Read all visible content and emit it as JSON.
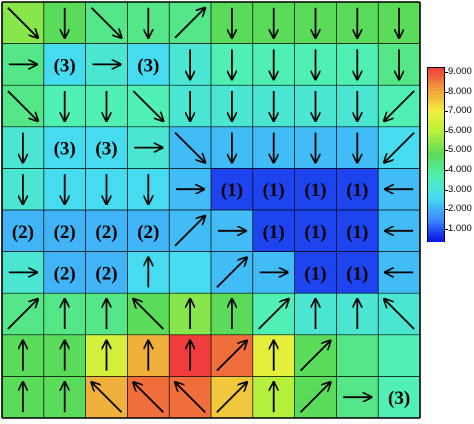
{
  "rows": 10,
  "cols": 10,
  "colormap": [
    {
      "value": 1.0,
      "color": "#0a14e6"
    },
    {
      "value": 2.0,
      "color": "#3c8cff"
    },
    {
      "value": 3.0,
      "color": "#46dcf0"
    },
    {
      "value": 4.0,
      "color": "#50f0b4"
    },
    {
      "value": 5.0,
      "color": "#5adc5a"
    },
    {
      "value": 6.0,
      "color": "#b4f03c"
    },
    {
      "value": 7.0,
      "color": "#f0f03c"
    },
    {
      "value": 8.0,
      "color": "#f0a03c"
    },
    {
      "value": 9.0,
      "color": "#f03c3c"
    }
  ],
  "legend": {
    "labels": [
      "9.000",
      "8.000",
      "7.000",
      "6.000",
      "5.000",
      "4.000",
      "3.000",
      "2.000",
      "1.000"
    ]
  },
  "cells": [
    [
      {
        "v": 5.5,
        "d": "se"
      },
      {
        "v": 5,
        "d": "s"
      },
      {
        "v": 4.5,
        "d": "se"
      },
      {
        "v": 4.5,
        "d": "s"
      },
      {
        "v": 4.5,
        "d": "ne"
      },
      {
        "v": 5,
        "d": "s"
      },
      {
        "v": 5,
        "d": "s"
      },
      {
        "v": 5,
        "d": "s"
      },
      {
        "v": 5,
        "d": "s"
      },
      {
        "v": 5,
        "d": "s"
      }
    ],
    [
      {
        "v": 4.5,
        "d": "e"
      },
      {
        "v": 3,
        "t": "(3)"
      },
      {
        "v": 3.5,
        "d": "e"
      },
      {
        "v": 3,
        "t": "(3)"
      },
      {
        "v": 3.5,
        "d": "s"
      },
      {
        "v": 4,
        "d": "s"
      },
      {
        "v": 4,
        "d": "s"
      },
      {
        "v": 4,
        "d": "s"
      },
      {
        "v": 4,
        "d": "s"
      },
      {
        "v": 4.5,
        "d": "s"
      }
    ],
    [
      {
        "v": 4.5,
        "d": "se"
      },
      {
        "v": 4,
        "d": "s"
      },
      {
        "v": 4,
        "d": "s"
      },
      {
        "v": 4,
        "d": "se"
      },
      {
        "v": 3.5,
        "d": "s"
      },
      {
        "v": 3.5,
        "d": "s"
      },
      {
        "v": 3.5,
        "d": "s"
      },
      {
        "v": 3.5,
        "d": "s"
      },
      {
        "v": 3.5,
        "d": "s"
      },
      {
        "v": 4,
        "d": "sw"
      }
    ],
    [
      {
        "v": 3.5,
        "d": "s"
      },
      {
        "v": 3,
        "t": "(3)"
      },
      {
        "v": 3,
        "t": "(3)"
      },
      {
        "v": 3.5,
        "d": "e"
      },
      {
        "v": 2.6,
        "d": "se"
      },
      {
        "v": 2.6,
        "d": "s"
      },
      {
        "v": 2.6,
        "d": "s"
      },
      {
        "v": 2.6,
        "d": "s"
      },
      {
        "v": 2.6,
        "d": "s"
      },
      {
        "v": 3,
        "d": "sw"
      }
    ],
    [
      {
        "v": 3.5,
        "d": "s"
      },
      {
        "v": 3,
        "d": "s"
      },
      {
        "v": 3,
        "d": "s"
      },
      {
        "v": 3,
        "d": "s"
      },
      {
        "v": 2.6,
        "d": "e"
      },
      {
        "v": 1.4,
        "t": "(1)"
      },
      {
        "v": 1.4,
        "t": "(1)"
      },
      {
        "v": 1.4,
        "t": "(1)"
      },
      {
        "v": 1.4,
        "t": "(1)"
      },
      {
        "v": 2.6,
        "d": "w"
      }
    ],
    [
      {
        "v": 2.5,
        "t": "(2)"
      },
      {
        "v": 2.5,
        "t": "(2)"
      },
      {
        "v": 2.5,
        "t": "(2)"
      },
      {
        "v": 2.5,
        "t": "(2)"
      },
      {
        "v": 2.6,
        "d": "ne"
      },
      {
        "v": 2.6,
        "d": "e"
      },
      {
        "v": 1.4,
        "t": "(1)"
      },
      {
        "v": 1.4,
        "t": "(1)"
      },
      {
        "v": 1.4,
        "t": "(1)"
      },
      {
        "v": 2.6,
        "d": "w"
      }
    ],
    [
      {
        "v": 3.5,
        "d": "e"
      },
      {
        "v": 2.5,
        "t": "(2)"
      },
      {
        "v": 2.5,
        "t": "(2)"
      },
      {
        "v": 3,
        "d": "n"
      },
      {
        "v": 3,
        "d": ""
      },
      {
        "v": 2.6,
        "d": "ne"
      },
      {
        "v": 2.6,
        "d": "e"
      },
      {
        "v": 1.4,
        "t": "(1)"
      },
      {
        "v": 1.4,
        "t": "(1)"
      },
      {
        "v": 2.6,
        "d": "w"
      }
    ],
    [
      {
        "v": 4.5,
        "d": "ne"
      },
      {
        "v": 4.5,
        "d": "n"
      },
      {
        "v": 4.5,
        "d": "n"
      },
      {
        "v": 5,
        "d": "nw"
      },
      {
        "v": 5.5,
        "d": "n"
      },
      {
        "v": 5,
        "d": "n"
      },
      {
        "v": 4,
        "d": "ne"
      },
      {
        "v": 3.5,
        "d": "n"
      },
      {
        "v": 3.5,
        "d": "n"
      },
      {
        "v": 3.5,
        "d": "nw"
      }
    ],
    [
      {
        "v": 5,
        "d": "n"
      },
      {
        "v": 5,
        "d": "n"
      },
      {
        "v": 6.5,
        "d": "n"
      },
      {
        "v": 7.8,
        "d": "n"
      },
      {
        "v": 9,
        "d": "n"
      },
      {
        "v": 8.5,
        "d": "ne"
      },
      {
        "v": 6.8,
        "d": "n"
      },
      {
        "v": 5,
        "d": "ne"
      },
      {
        "v": 4.5,
        "d": ""
      },
      {
        "v": 4,
        "d": ""
      }
    ],
    [
      {
        "v": 5,
        "d": "n"
      },
      {
        "v": 5,
        "d": "n"
      },
      {
        "v": 7.8,
        "d": "nw"
      },
      {
        "v": 8.5,
        "d": "nw"
      },
      {
        "v": 8.5,
        "d": "nw"
      },
      {
        "v": 7.5,
        "d": "ne"
      },
      {
        "v": 6,
        "d": "n"
      },
      {
        "v": 5,
        "d": "ne"
      },
      {
        "v": 4.5,
        "d": "e"
      },
      {
        "v": 4,
        "t": "(3)"
      }
    ]
  ]
}
